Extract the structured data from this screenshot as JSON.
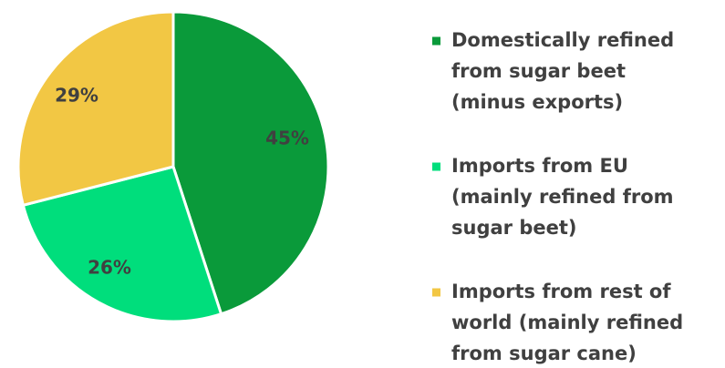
{
  "chart_data": {
    "type": "pie",
    "title": "",
    "series": [
      {
        "name": "",
        "values": [
          {
            "label": "Domestically refined from sugar beet (minus exports)",
            "value": 45,
            "display": "45%",
            "color": "#0a9a3a"
          },
          {
            "label": "Imports from EU (mainly refined from sugar beet)",
            "value": 26,
            "display": "26%",
            "color": "#00de7c"
          },
          {
            "label": "Imports from rest of world (mainly refined from sugar cane)",
            "value": 29,
            "display": "29%",
            "color": "#f2c744"
          }
        ]
      }
    ],
    "legend": {
      "placement": "right",
      "entries": [
        {
          "lines": [
            "Domestically refined",
            "from sugar beet",
            "(minus exports)"
          ],
          "color": "#0a9a3a"
        },
        {
          "lines": [
            "Imports from EU",
            "(mainly refined from",
            "sugar beet)"
          ],
          "color": "#00de7c"
        },
        {
          "lines": [
            "Imports from rest of",
            "world (mainly refined",
            "from sugar cane)"
          ],
          "color": "#f2c744"
        }
      ]
    }
  }
}
